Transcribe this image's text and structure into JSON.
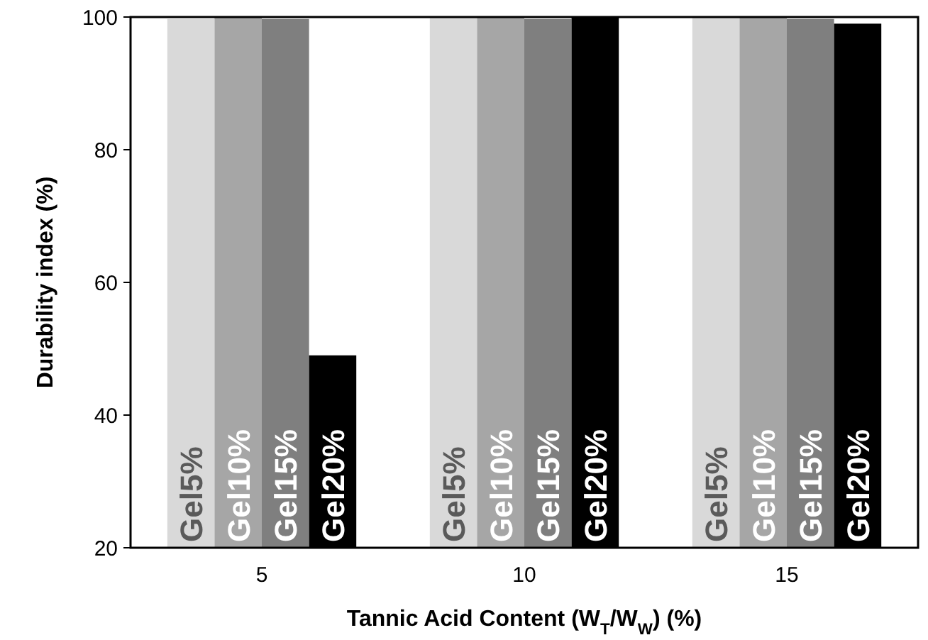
{
  "chart_data": {
    "type": "bar",
    "xlabel": "Tannic Acid Content (W$_{T}$/W$_{W}$) (%)",
    "ylabel": "Durability index (%)",
    "categories": [
      "5",
      "10",
      "15"
    ],
    "series": [
      {
        "name": "Gel5%",
        "color": "#d9d9d9",
        "values": [
          99.7,
          100,
          100
        ]
      },
      {
        "name": "Gel10%",
        "color": "#a6a6a6",
        "values": [
          100,
          100,
          100
        ]
      },
      {
        "name": "Gel15%",
        "color": "#7f7f7f",
        "values": [
          99.7,
          99.7,
          99.7
        ]
      },
      {
        "name": "Gel20%",
        "color": "#000000",
        "values": [
          49,
          100,
          99
        ]
      }
    ],
    "ylim": [
      20,
      100
    ],
    "yticks": [
      20,
      40,
      60,
      80,
      100
    ]
  }
}
